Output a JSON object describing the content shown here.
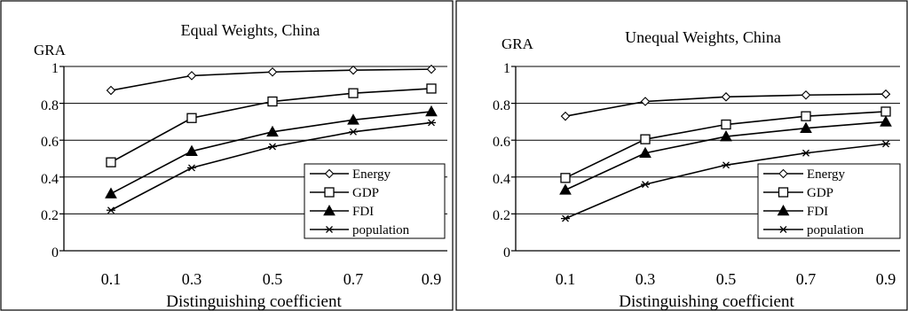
{
  "chart_data": [
    {
      "type": "line",
      "title": "Equal Weights, China",
      "ylabel": "GRA",
      "xlabel": "Distinguishing coefficient",
      "x": [
        0.1,
        0.3,
        0.5,
        0.7,
        0.9
      ],
      "x_tick_labels": [
        "0.1",
        "0.3",
        "0.5",
        "0.7",
        "0.9"
      ],
      "ylim": [
        0,
        1
      ],
      "y_ticks": [
        0,
        0.2,
        0.4,
        0.6,
        0.8,
        1
      ],
      "y_tick_labels": [
        "0",
        "0.2",
        "0.4",
        "0.6",
        "0.8",
        "1"
      ],
      "grid": "horizontal",
      "legend_position": "bottom-right",
      "series": [
        {
          "name": "Energy",
          "marker": "diamond-open",
          "values": [
            0.87,
            0.95,
            0.97,
            0.98,
            0.985
          ]
        },
        {
          "name": "GDP",
          "marker": "square-open",
          "values": [
            0.48,
            0.72,
            0.81,
            0.855,
            0.88
          ]
        },
        {
          "name": "FDI",
          "marker": "triangle-filled",
          "values": [
            0.31,
            0.54,
            0.645,
            0.71,
            0.755
          ]
        },
        {
          "name": "population",
          "marker": "asterisk",
          "values": [
            0.22,
            0.45,
            0.565,
            0.645,
            0.695
          ]
        }
      ]
    },
    {
      "type": "line",
      "title": "Unequal Weights, China",
      "ylabel": "GRA",
      "xlabel": "Distinguishing coefficient",
      "x": [
        0.1,
        0.3,
        0.5,
        0.7,
        0.9
      ],
      "x_tick_labels": [
        "0.1",
        "0.3",
        "0.5",
        "0.7",
        "0.9"
      ],
      "ylim": [
        0,
        1
      ],
      "y_ticks": [
        0,
        0.2,
        0.4,
        0.6,
        0.8,
        1
      ],
      "y_tick_labels": [
        "0",
        "0.2",
        "0.4",
        "0.6",
        "0.8",
        "1"
      ],
      "grid": "horizontal",
      "legend_position": "bottom-right",
      "series": [
        {
          "name": "Energy",
          "marker": "diamond-open",
          "values": [
            0.73,
            0.81,
            0.835,
            0.845,
            0.85
          ]
        },
        {
          "name": "GDP",
          "marker": "square-open",
          "values": [
            0.395,
            0.605,
            0.685,
            0.73,
            0.755
          ]
        },
        {
          "name": "FDI",
          "marker": "triangle-filled",
          "values": [
            0.33,
            0.53,
            0.62,
            0.665,
            0.7
          ]
        },
        {
          "name": "population",
          "marker": "asterisk",
          "values": [
            0.175,
            0.36,
            0.465,
            0.53,
            0.58
          ]
        }
      ]
    }
  ]
}
